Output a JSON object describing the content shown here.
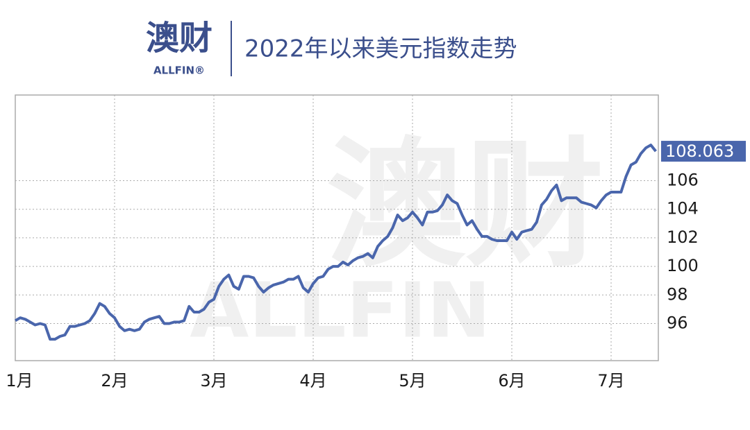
{
  "logo": {
    "name": "澳财",
    "sub": "ALLFIN®"
  },
  "watermark": {
    "name": "澳财",
    "sub": "ALLFIN"
  },
  "chart_data": {
    "type": "line",
    "title": "2022年以来美元指数走势",
    "categories": [
      "1月",
      null,
      null,
      null,
      null,
      null,
      null,
      null,
      null,
      null,
      null,
      null,
      null,
      null,
      null,
      null,
      null,
      null,
      null,
      null,
      "2月",
      null,
      null,
      null,
      null,
      null,
      null,
      null,
      null,
      null,
      null,
      null,
      null,
      null,
      null,
      null,
      null,
      null,
      null,
      null,
      "3月",
      null,
      null,
      null,
      null,
      null,
      null,
      null,
      null,
      null,
      null,
      null,
      null,
      null,
      null,
      null,
      null,
      null,
      null,
      null,
      "4月",
      null,
      null,
      null,
      null,
      null,
      null,
      null,
      null,
      null,
      null,
      null,
      null,
      null,
      null,
      null,
      null,
      null,
      null,
      null,
      "5月",
      null,
      null,
      null,
      null,
      null,
      null,
      null,
      null,
      null,
      null,
      null,
      null,
      null,
      null,
      null,
      null,
      null,
      null,
      null,
      "6月",
      null,
      null,
      null,
      null,
      null,
      null,
      null,
      null,
      null,
      null,
      null,
      null,
      null,
      null,
      null,
      null,
      null,
      null,
      null,
      "7月",
      null,
      null,
      null,
      null,
      null,
      null,
      null,
      null,
      null
    ],
    "values": [
      96.2,
      96.4,
      96.3,
      96.1,
      95.9,
      96.0,
      95.9,
      94.9,
      94.9,
      95.1,
      95.2,
      95.8,
      95.8,
      95.9,
      96.0,
      96.2,
      96.7,
      97.4,
      97.2,
      96.7,
      96.4,
      95.8,
      95.5,
      95.6,
      95.5,
      95.6,
      96.1,
      96.3,
      96.4,
      96.5,
      96.0,
      96.0,
      96.1,
      96.1,
      96.2,
      97.2,
      96.8,
      96.8,
      97.0,
      97.5,
      97.7,
      98.6,
      99.1,
      99.4,
      98.6,
      98.4,
      99.3,
      99.3,
      99.2,
      98.6,
      98.2,
      98.5,
      98.7,
      98.8,
      98.9,
      99.1,
      99.1,
      99.3,
      98.5,
      98.2,
      98.8,
      99.2,
      99.3,
      99.8,
      100.0,
      100.0,
      100.3,
      100.1,
      100.4,
      100.6,
      100.7,
      100.9,
      100.6,
      101.4,
      101.8,
      102.1,
      102.7,
      103.6,
      103.2,
      103.4,
      103.8,
      103.4,
      102.9,
      103.8,
      103.8,
      103.9,
      104.3,
      105.0,
      104.6,
      104.4,
      103.6,
      102.9,
      103.2,
      102.6,
      102.1,
      102.1,
      101.9,
      101.8,
      101.8,
      101.8,
      102.4,
      101.9,
      102.4,
      102.5,
      102.6,
      103.1,
      104.3,
      104.7,
      105.3,
      105.7,
      104.6,
      104.8,
      104.8,
      104.8,
      104.5,
      104.4,
      104.3,
      104.1,
      104.6,
      105.0,
      105.2,
      105.2,
      105.2,
      106.3,
      107.1,
      107.3,
      107.9,
      108.3,
      108.5,
      108.063
    ],
    "color": "#4a66ac",
    "ylim": [
      93.4,
      112
    ],
    "yticks": [
      96,
      98,
      100,
      102,
      104,
      106
    ],
    "grid": true
  }
}
